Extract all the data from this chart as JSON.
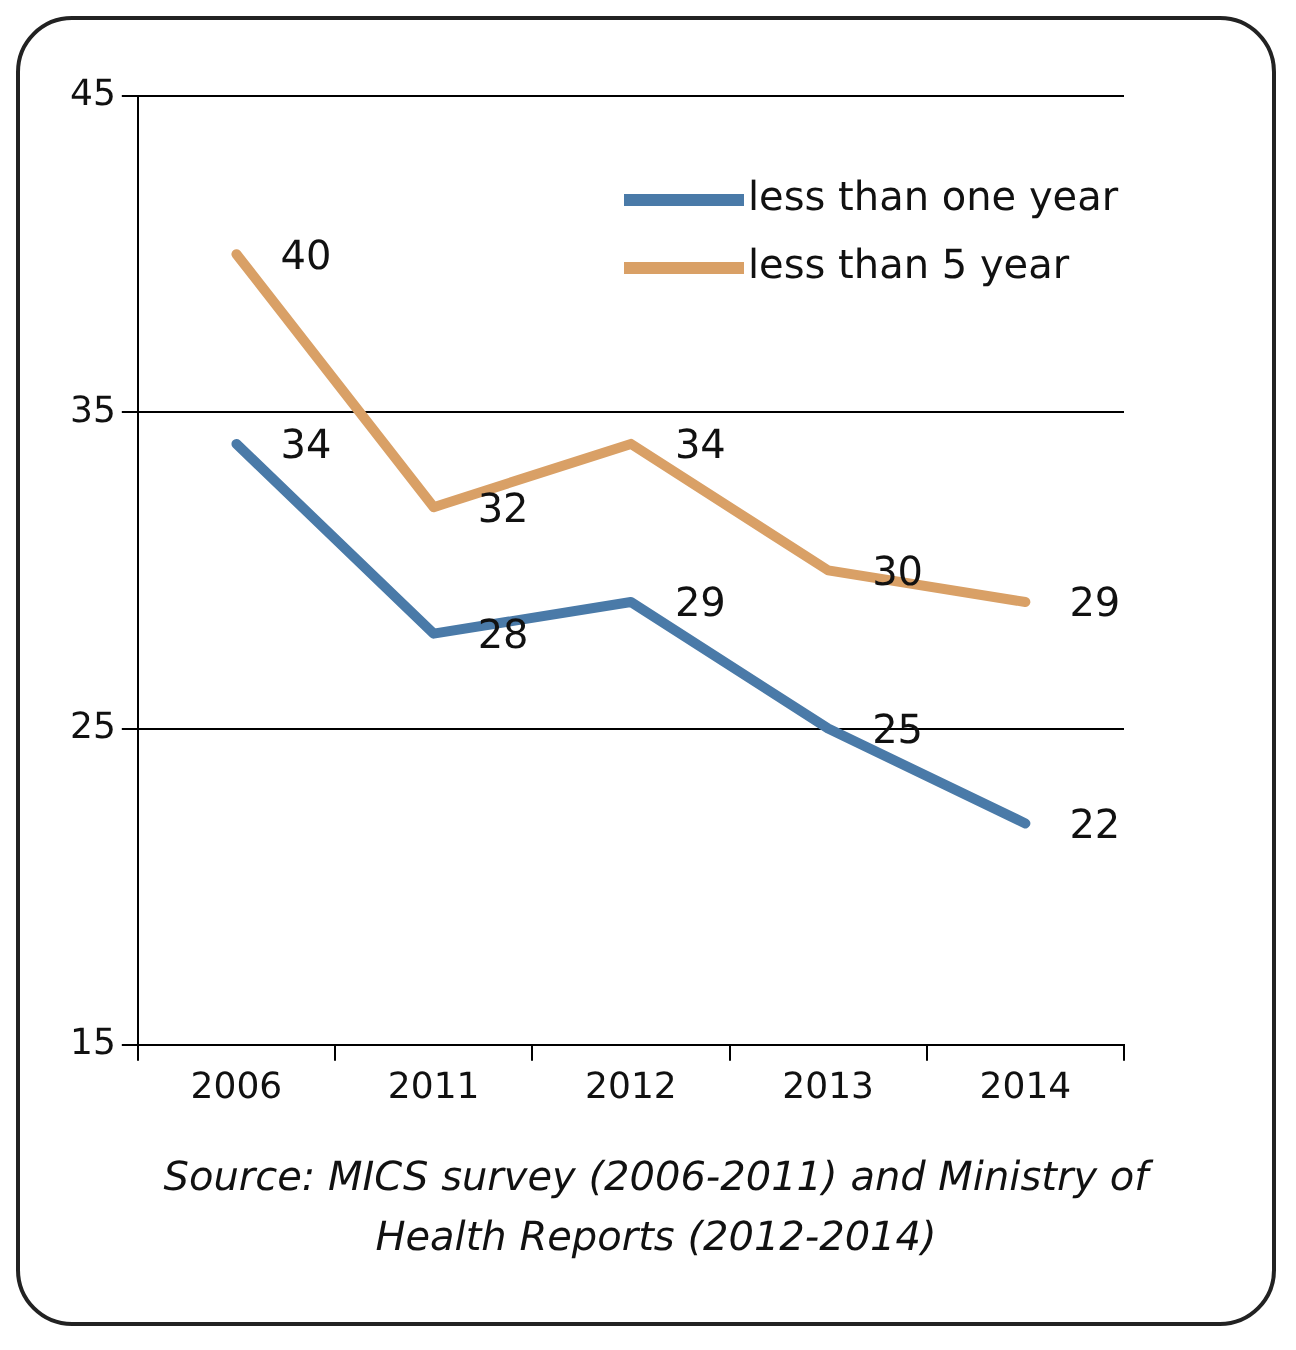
{
  "chart_data": {
    "type": "line",
    "categories": [
      "2006",
      "2011",
      "2012",
      "2013",
      "2014"
    ],
    "series": [
      {
        "name": "less than one year",
        "color": "#4a7aa8",
        "values": [
          34,
          28,
          29,
          25,
          22
        ]
      },
      {
        "name": "less than 5 year",
        "color": "#d9a066",
        "values": [
          40,
          32,
          34,
          30,
          29
        ]
      }
    ],
    "ylim": [
      15,
      45
    ],
    "yticks": [
      15,
      25,
      35,
      45
    ],
    "grid": "y",
    "legend": "top right",
    "data_labels": true,
    "marker": "none",
    "line_style": "solid",
    "annotations": [
      "Source: MICS survey (2006-2011) and Ministry of Health Reports (2012-2014)"
    ]
  }
}
